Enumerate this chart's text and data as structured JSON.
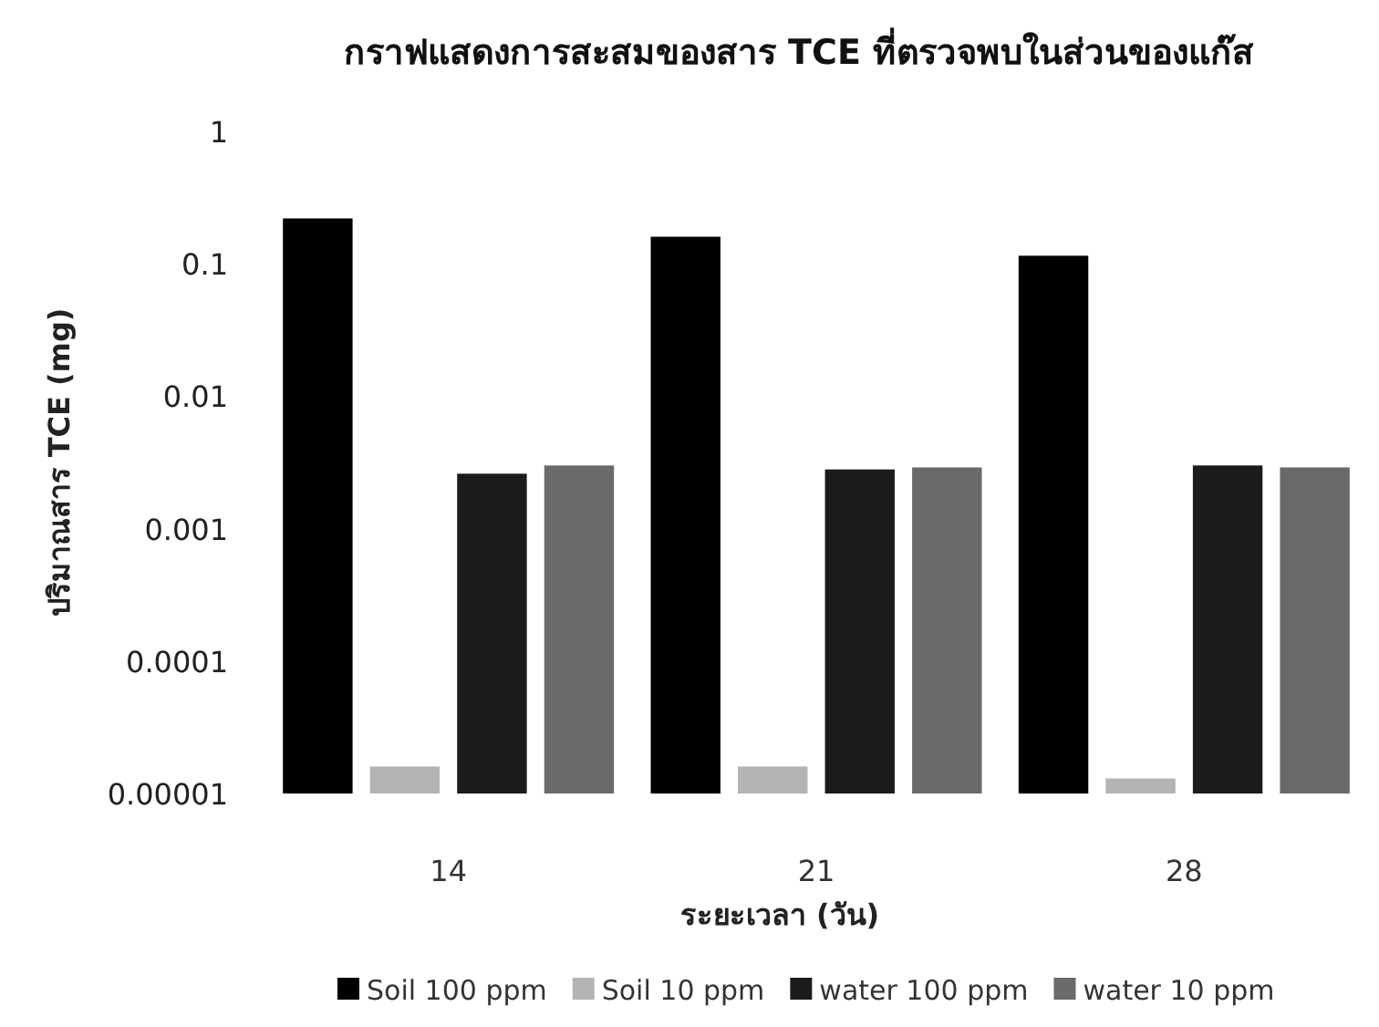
{
  "chart_data": {
    "type": "bar",
    "title": "กราฟแสดงการสะสมของสาร TCE ที่ตรวจพบในส่วนของแก๊ส",
    "xlabel": "ระยะเวลา (วัน)",
    "ylabel": "ปริมาณสาร TCE (mg)",
    "categories": [
      "14",
      "21",
      "28"
    ],
    "log": "y",
    "ylim": [
      1e-05,
      1
    ],
    "yticks": [
      {
        "value": 1e-05,
        "label": "0.00001"
      },
      0.0001,
      0.001,
      0.01,
      0.1,
      1
    ],
    "grid": false,
    "legend": "bottom",
    "series": [
      {
        "name": "Soil 100 ppm",
        "color": "#000000",
        "values": [
          0.22,
          0.16,
          0.115
        ]
      },
      {
        "name": "Soil 10 ppm",
        "color": "#b4b4b4",
        "values": [
          1.6e-05,
          1.6e-05,
          1.3e-05
        ]
      },
      {
        "name": "water 100 ppm",
        "color": "#1c1c1c",
        "values": [
          0.0026,
          0.0028,
          0.003
        ]
      },
      {
        "name": "water 10 ppm",
        "color": "#6a6a6a",
        "values": [
          0.003,
          0.0029,
          0.0029
        ]
      }
    ]
  }
}
